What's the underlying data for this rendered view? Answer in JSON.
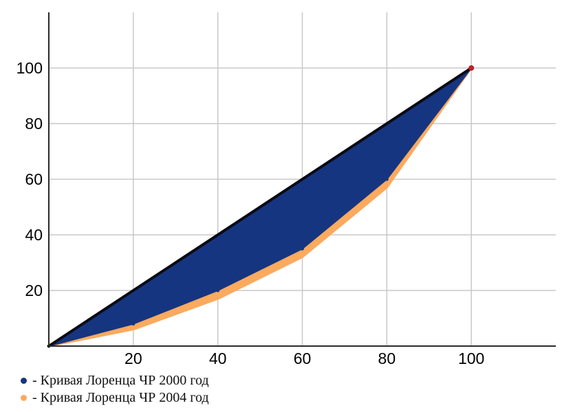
{
  "chart_data": {
    "type": "area",
    "x": [
      0,
      20,
      40,
      60,
      80,
      100
    ],
    "series": [
      {
        "name": "- Кривая Лоренца ЧР 2000 год",
        "values": [
          0,
          8,
          20,
          35,
          60,
          100
        ],
        "color": "#163580"
      },
      {
        "name": "- Кривая Лоренца ЧР 2004 год",
        "values": [
          0,
          6,
          17,
          32,
          57,
          100
        ],
        "color": "#fbaa5e"
      }
    ],
    "equality_line": {
      "values": [
        0,
        100
      ],
      "color": "#0a0a14"
    },
    "x_ticks": [
      "20",
      "40",
      "60",
      "80",
      "100"
    ],
    "y_ticks": [
      "20",
      "40",
      "60",
      "80",
      "100"
    ],
    "xlim": [
      0,
      120
    ],
    "ylim": [
      0,
      120
    ],
    "grid": true,
    "legend_position": "bottom-left",
    "xlabel": "",
    "ylabel": "",
    "title": ""
  }
}
